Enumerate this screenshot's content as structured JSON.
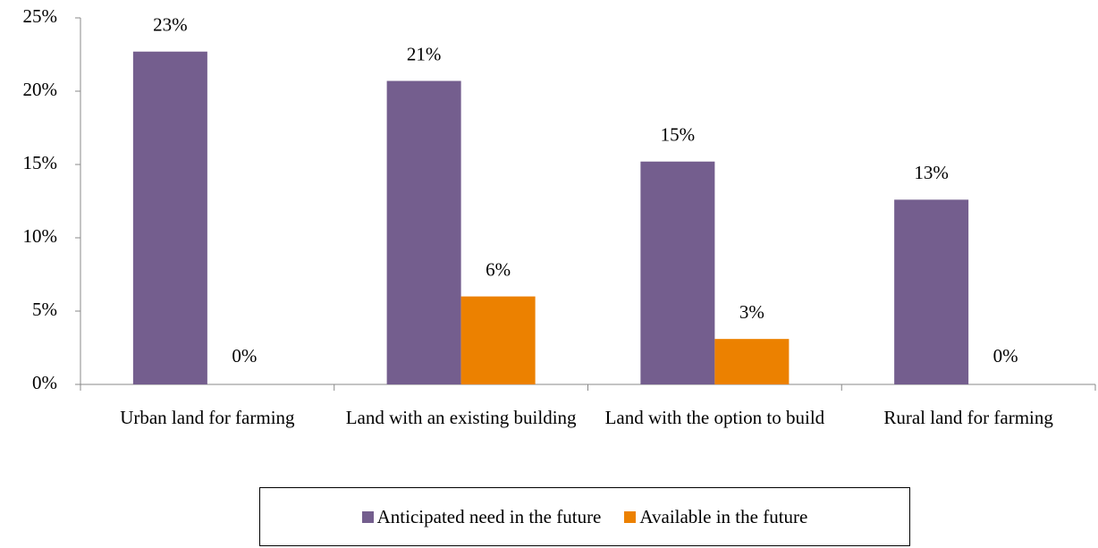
{
  "chart_data": {
    "type": "bar",
    "categories": [
      "Urban land for farming",
      "Land with an existing building",
      "Land with the option to build",
      "Rural land for farming"
    ],
    "series": [
      {
        "name": "Anticipated need in the future",
        "color": "#745e8e",
        "values": [
          22.7,
          20.7,
          15.2,
          12.6
        ],
        "value_labels": [
          "23%",
          "21%",
          "15%",
          "13%"
        ]
      },
      {
        "name": "Available in the future",
        "color": "#ec8100",
        "values": [
          0,
          6.0,
          3.1,
          0
        ],
        "value_labels": [
          "0%",
          "6%",
          "3%",
          "0%"
        ]
      }
    ],
    "ylim": [
      0,
      25
    ],
    "yticks": [
      {
        "value": 0,
        "label": "0%"
      },
      {
        "value": 5,
        "label": "5%"
      },
      {
        "value": 10,
        "label": "10%"
      },
      {
        "value": 15,
        "label": "15%"
      },
      {
        "value": 20,
        "label": "20%"
      },
      {
        "value": 25,
        "label": "25%"
      }
    ],
    "grid": false,
    "legend": "bottom"
  }
}
